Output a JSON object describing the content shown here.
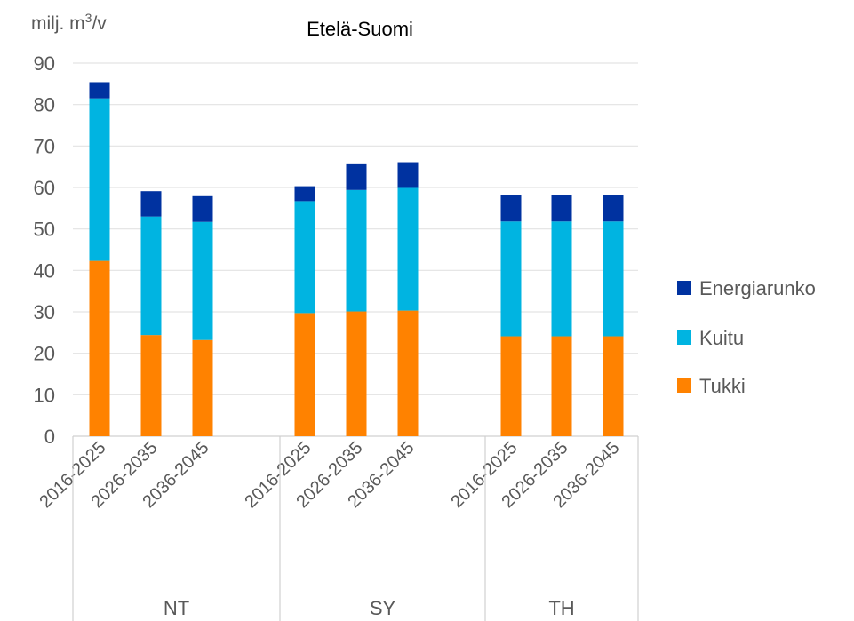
{
  "chart_data": {
    "type": "bar",
    "stacked": true,
    "title": "Etelä-Suomi",
    "ylabel": "milj. m3/v",
    "ylabel_parts": {
      "main": "milj. m",
      "sup": "3",
      "tail": "/v"
    },
    "ylim": [
      0,
      90
    ],
    "yticks": [
      0,
      10,
      20,
      30,
      40,
      50,
      60,
      70,
      80,
      90
    ],
    "grid": true,
    "legend_position": "right",
    "groups": [
      "NT",
      "SY",
      "TH"
    ],
    "categories": [
      "2016-2025",
      "2026-2035",
      "2036-2045"
    ],
    "series": [
      {
        "name": "Tukki",
        "color": "#FF8200",
        "values": [
          [
            42.3,
            24.4,
            23.2
          ],
          [
            29.7,
            30.1,
            30.3
          ],
          [
            24.1,
            24.1,
            24.1
          ]
        ]
      },
      {
        "name": "Kuitu",
        "color": "#00B4E1",
        "values": [
          [
            39.2,
            28.6,
            28.5
          ],
          [
            27.0,
            29.3,
            29.6
          ],
          [
            27.7,
            27.7,
            27.7
          ]
        ]
      },
      {
        "name": "Energiarunko",
        "color": "#0032A0",
        "values": [
          [
            3.9,
            6.1,
            6.2
          ],
          [
            3.6,
            6.2,
            6.2
          ],
          [
            6.4,
            6.4,
            6.4
          ]
        ]
      }
    ],
    "legend_order": [
      "Energiarunko",
      "Kuitu",
      "Tukki"
    ]
  }
}
